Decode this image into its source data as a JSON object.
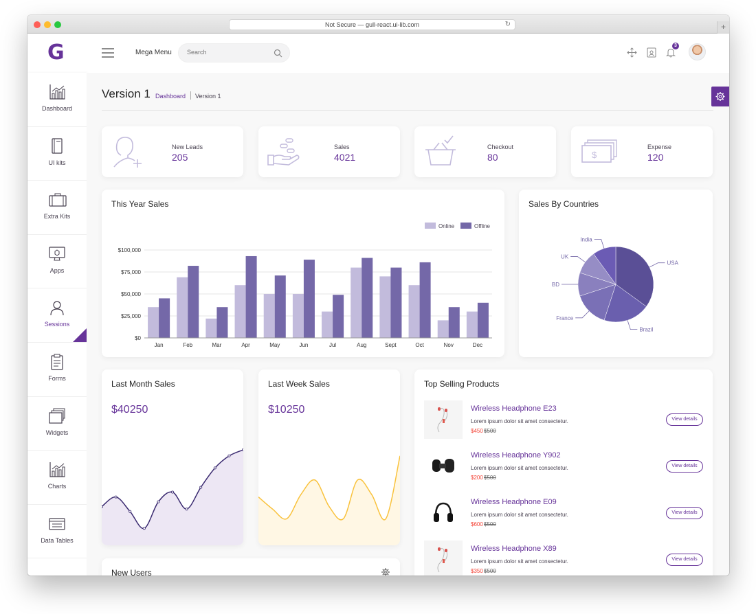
{
  "browser": {
    "url": "Not Secure — gull-react.ui-lib.com"
  },
  "header": {
    "logo": "G",
    "mega_menu": "Mega Menu",
    "search_placeholder": "Search",
    "notification_count": "3"
  },
  "sidebar": {
    "items": [
      {
        "label": "Dashboard",
        "icon": "bar-chart-icon"
      },
      {
        "label": "UI kits",
        "icon": "book-icon"
      },
      {
        "label": "Extra Kits",
        "icon": "suitcase-icon"
      },
      {
        "label": "Apps",
        "icon": "monitor-icon"
      },
      {
        "label": "Sessions",
        "icon": "user-icon",
        "active": true
      },
      {
        "label": "Forms",
        "icon": "clipboard-icon"
      },
      {
        "label": "Widgets",
        "icon": "windows-icon"
      },
      {
        "label": "Charts",
        "icon": "bar-chart-icon"
      },
      {
        "label": "Data Tables",
        "icon": "table-icon"
      }
    ]
  },
  "page": {
    "title": "Version 1",
    "breadcrumb": [
      "Dashboard",
      "Version 1"
    ]
  },
  "stats": [
    {
      "label": "New Leads",
      "value": "205",
      "icon": "add-user-icon"
    },
    {
      "label": "Sales",
      "value": "4021",
      "icon": "coins-hand-icon"
    },
    {
      "label": "Checkout",
      "value": "80",
      "icon": "basket-icon"
    },
    {
      "label": "Expense",
      "value": "120",
      "icon": "money-icon"
    }
  ],
  "year_sales": {
    "title": "This Year Sales",
    "legend": [
      "Online",
      "Offline"
    ]
  },
  "countries": {
    "title": "Sales By Countries"
  },
  "last_month": {
    "title": "Last Month Sales",
    "amount": "$40250"
  },
  "last_week": {
    "title": "Last Week Sales",
    "amount": "$10250"
  },
  "new_users": {
    "title": "New Users"
  },
  "top_products": {
    "title": "Top Selling Products",
    "items": [
      {
        "name": "Wireless Headphone E23",
        "desc": "Lorem ipsum dolor sit amet consectetur.",
        "price": "$450",
        "old_price": "$500",
        "button": "View details"
      },
      {
        "name": "Wireless Headphone Y902",
        "desc": "Lorem ipsum dolor sit amet consectetur.",
        "price": "$200",
        "old_price": "$500",
        "button": "View details"
      },
      {
        "name": "Wireless Headphone E09",
        "desc": "Lorem ipsum dolor sit amet consectetur.",
        "price": "$600",
        "old_price": "$500",
        "button": "View details"
      },
      {
        "name": "Wireless Headphone X89",
        "desc": "Lorem ipsum dolor sit amet consectetur.",
        "price": "$350",
        "old_price": "$500",
        "button": "View details"
      }
    ]
  },
  "colors": {
    "primary": "#663399",
    "online": "#c2bbdc",
    "offline": "#7468a8",
    "month_area": "#ede7f4",
    "week_area": "#fff7e4",
    "week_line": "#f9c23c"
  },
  "chart_data": [
    {
      "type": "bar",
      "categories": [
        "Jan",
        "Feb",
        "Mar",
        "Apr",
        "May",
        "Jun",
        "Jul",
        "Aug",
        "Sept",
        "Oct",
        "Nov",
        "Dec"
      ],
      "series": [
        {
          "name": "Online",
          "values": [
            35000,
            69000,
            22000,
            60000,
            50000,
            50000,
            30000,
            80000,
            70000,
            60000,
            20000,
            30000
          ]
        },
        {
          "name": "Offline",
          "values": [
            45000,
            82000,
            35000,
            93000,
            71000,
            89000,
            49000,
            91000,
            80000,
            86000,
            35000,
            40000
          ]
        }
      ],
      "ylim": [
        0,
        100000
      ],
      "yticks": [
        "$0",
        "$25,000",
        "$50,000",
        "$75,000",
        "$100,000"
      ],
      "grid": true,
      "legend": "top-right"
    },
    {
      "type": "pie",
      "labels": [
        "USA",
        "Brazil",
        "France",
        "BD",
        "UK",
        "India"
      ],
      "values": [
        35,
        20,
        15,
        10,
        10,
        10
      ],
      "colors": [
        "#5a4f96",
        "#6a5fae",
        "#7a70b6",
        "#8a80be",
        "#968dc5",
        "#6b5bb4"
      ]
    },
    {
      "type": "area",
      "series": [
        {
          "values": [
            32,
            40,
            28,
            14,
            36,
            44,
            30,
            48,
            64,
            74,
            79
          ]
        }
      ],
      "ylim": [
        0,
        100
      ]
    },
    {
      "type": "area",
      "series": [
        {
          "values": [
            40,
            30,
            22,
            42,
            54,
            32,
            22,
            54,
            42,
            22,
            74
          ]
        }
      ],
      "ylim": [
        0,
        100
      ]
    }
  ]
}
